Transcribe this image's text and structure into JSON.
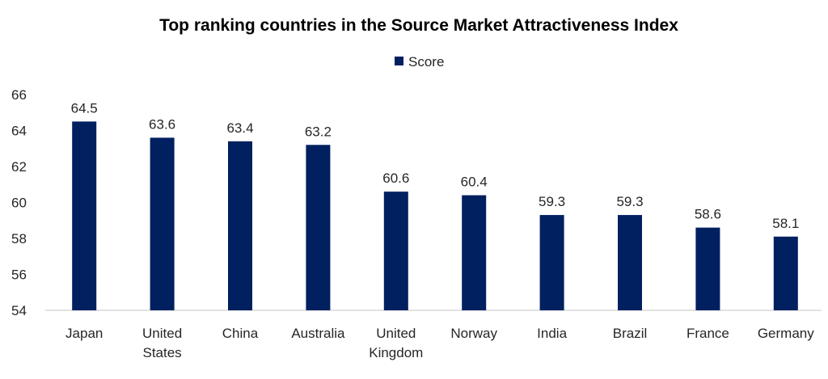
{
  "chart_data": {
    "type": "bar",
    "title": "Top ranking countries in the Source Market Attractiveness Index",
    "categories": [
      [
        "Japan"
      ],
      [
        "United",
        "States"
      ],
      [
        "China"
      ],
      [
        "Australia"
      ],
      [
        "United",
        "Kingdom"
      ],
      [
        "Norway"
      ],
      [
        "India"
      ],
      [
        "Brazil"
      ],
      [
        "France"
      ],
      [
        "Germany"
      ]
    ],
    "series": [
      {
        "name": "Score",
        "values": [
          64.5,
          63.6,
          63.4,
          63.2,
          60.6,
          60.4,
          59.3,
          59.3,
          58.6,
          58.1
        ],
        "color": "#002060"
      }
    ],
    "yticks": [
      54,
      56,
      58,
      60,
      62,
      64,
      66
    ],
    "ylim": [
      54,
      66
    ],
    "xlabel": "",
    "ylabel": "",
    "grid": false,
    "legend": "top-center",
    "data_labels": true
  }
}
